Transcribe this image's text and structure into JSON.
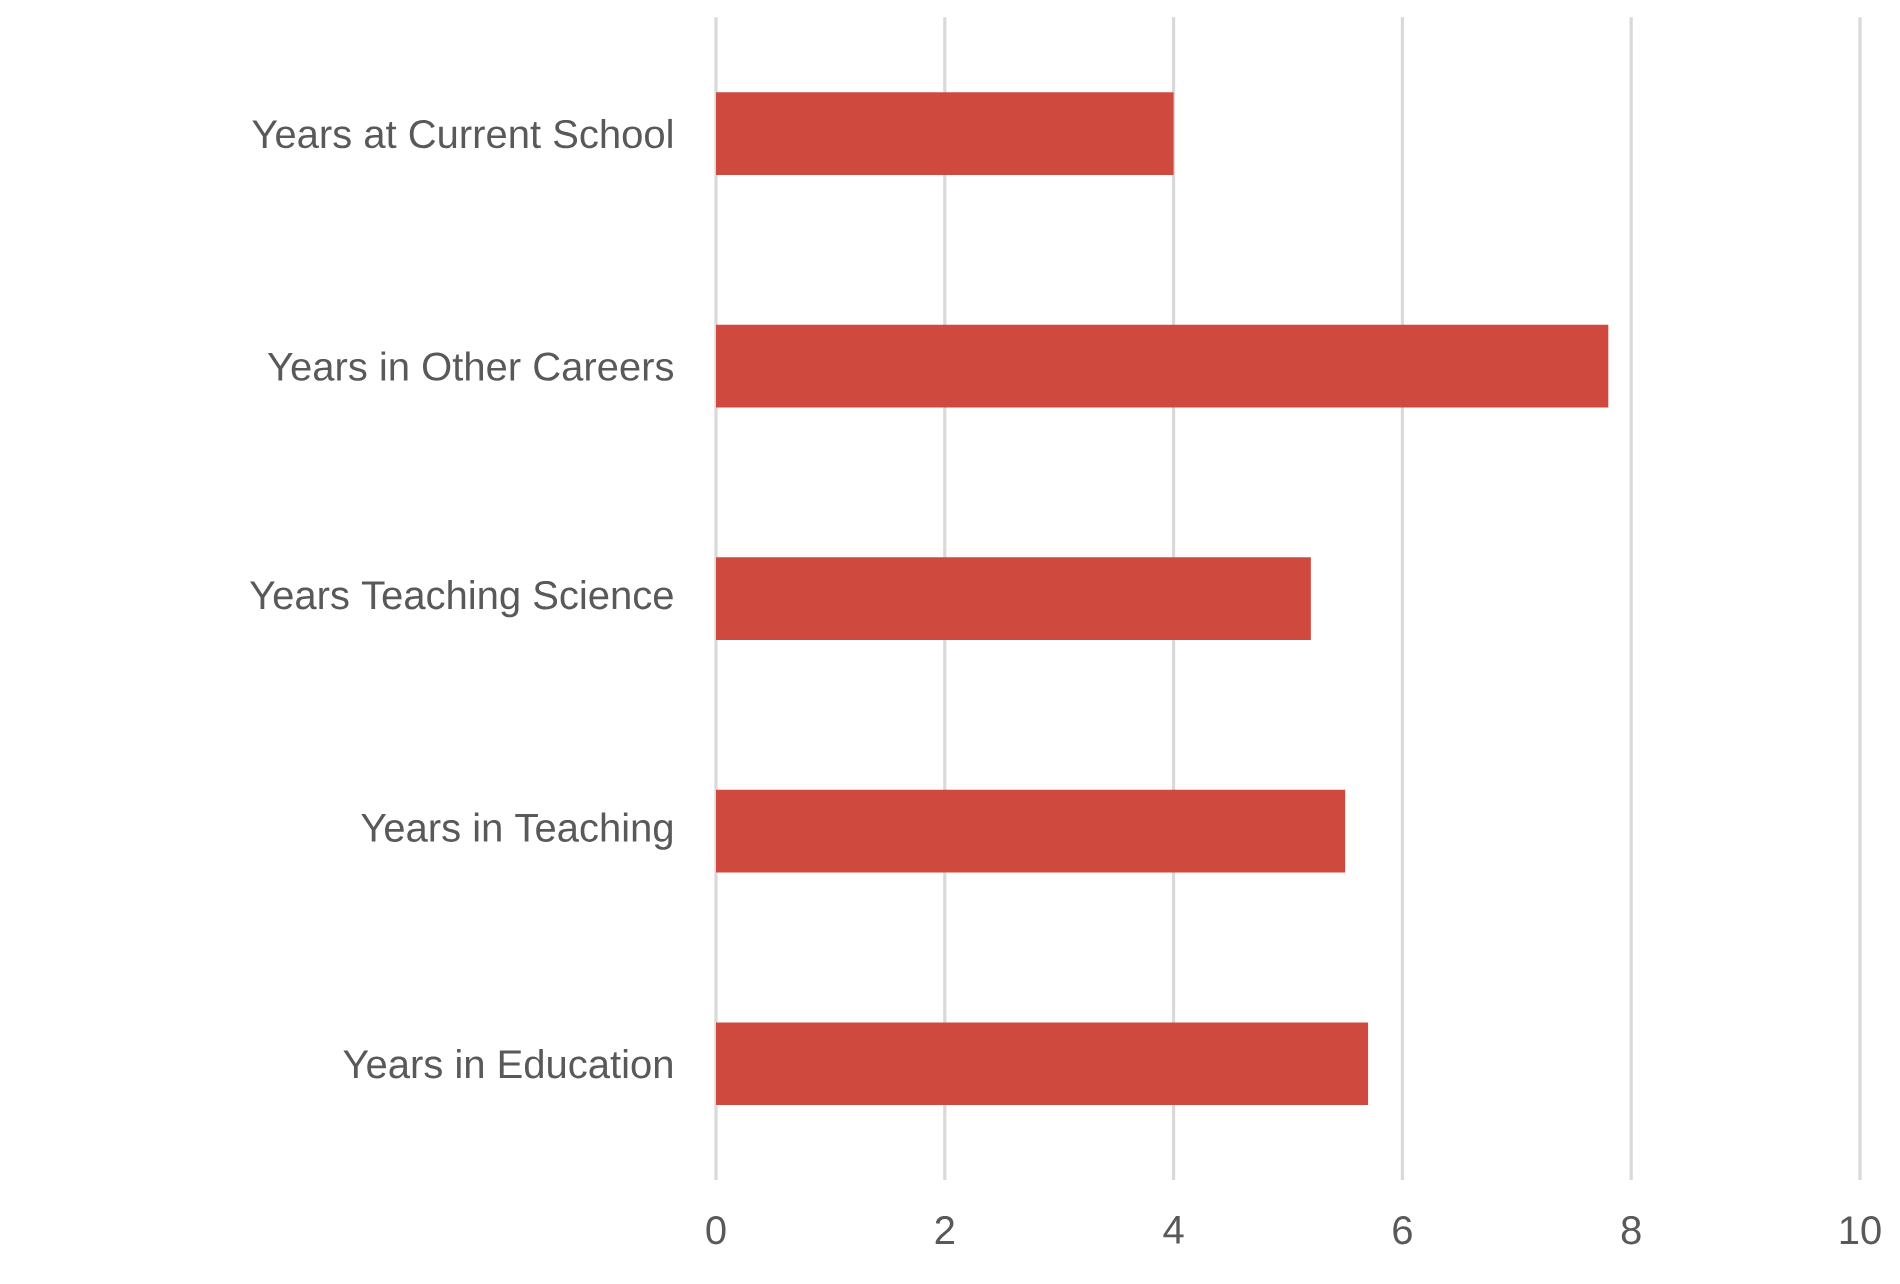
{
  "chart_data": {
    "type": "bar",
    "orientation": "horizontal",
    "categories": [
      "Years at Current School",
      "Years in Other Careers",
      "Years Teaching Science",
      "Years in Teaching",
      "Years in Education"
    ],
    "values": [
      4.0,
      7.8,
      5.2,
      5.5,
      5.7
    ],
    "color": "#d0493f",
    "xlim": [
      0,
      10
    ],
    "xticks": [
      0,
      2,
      4,
      6,
      8,
      10
    ],
    "grid": "x"
  }
}
